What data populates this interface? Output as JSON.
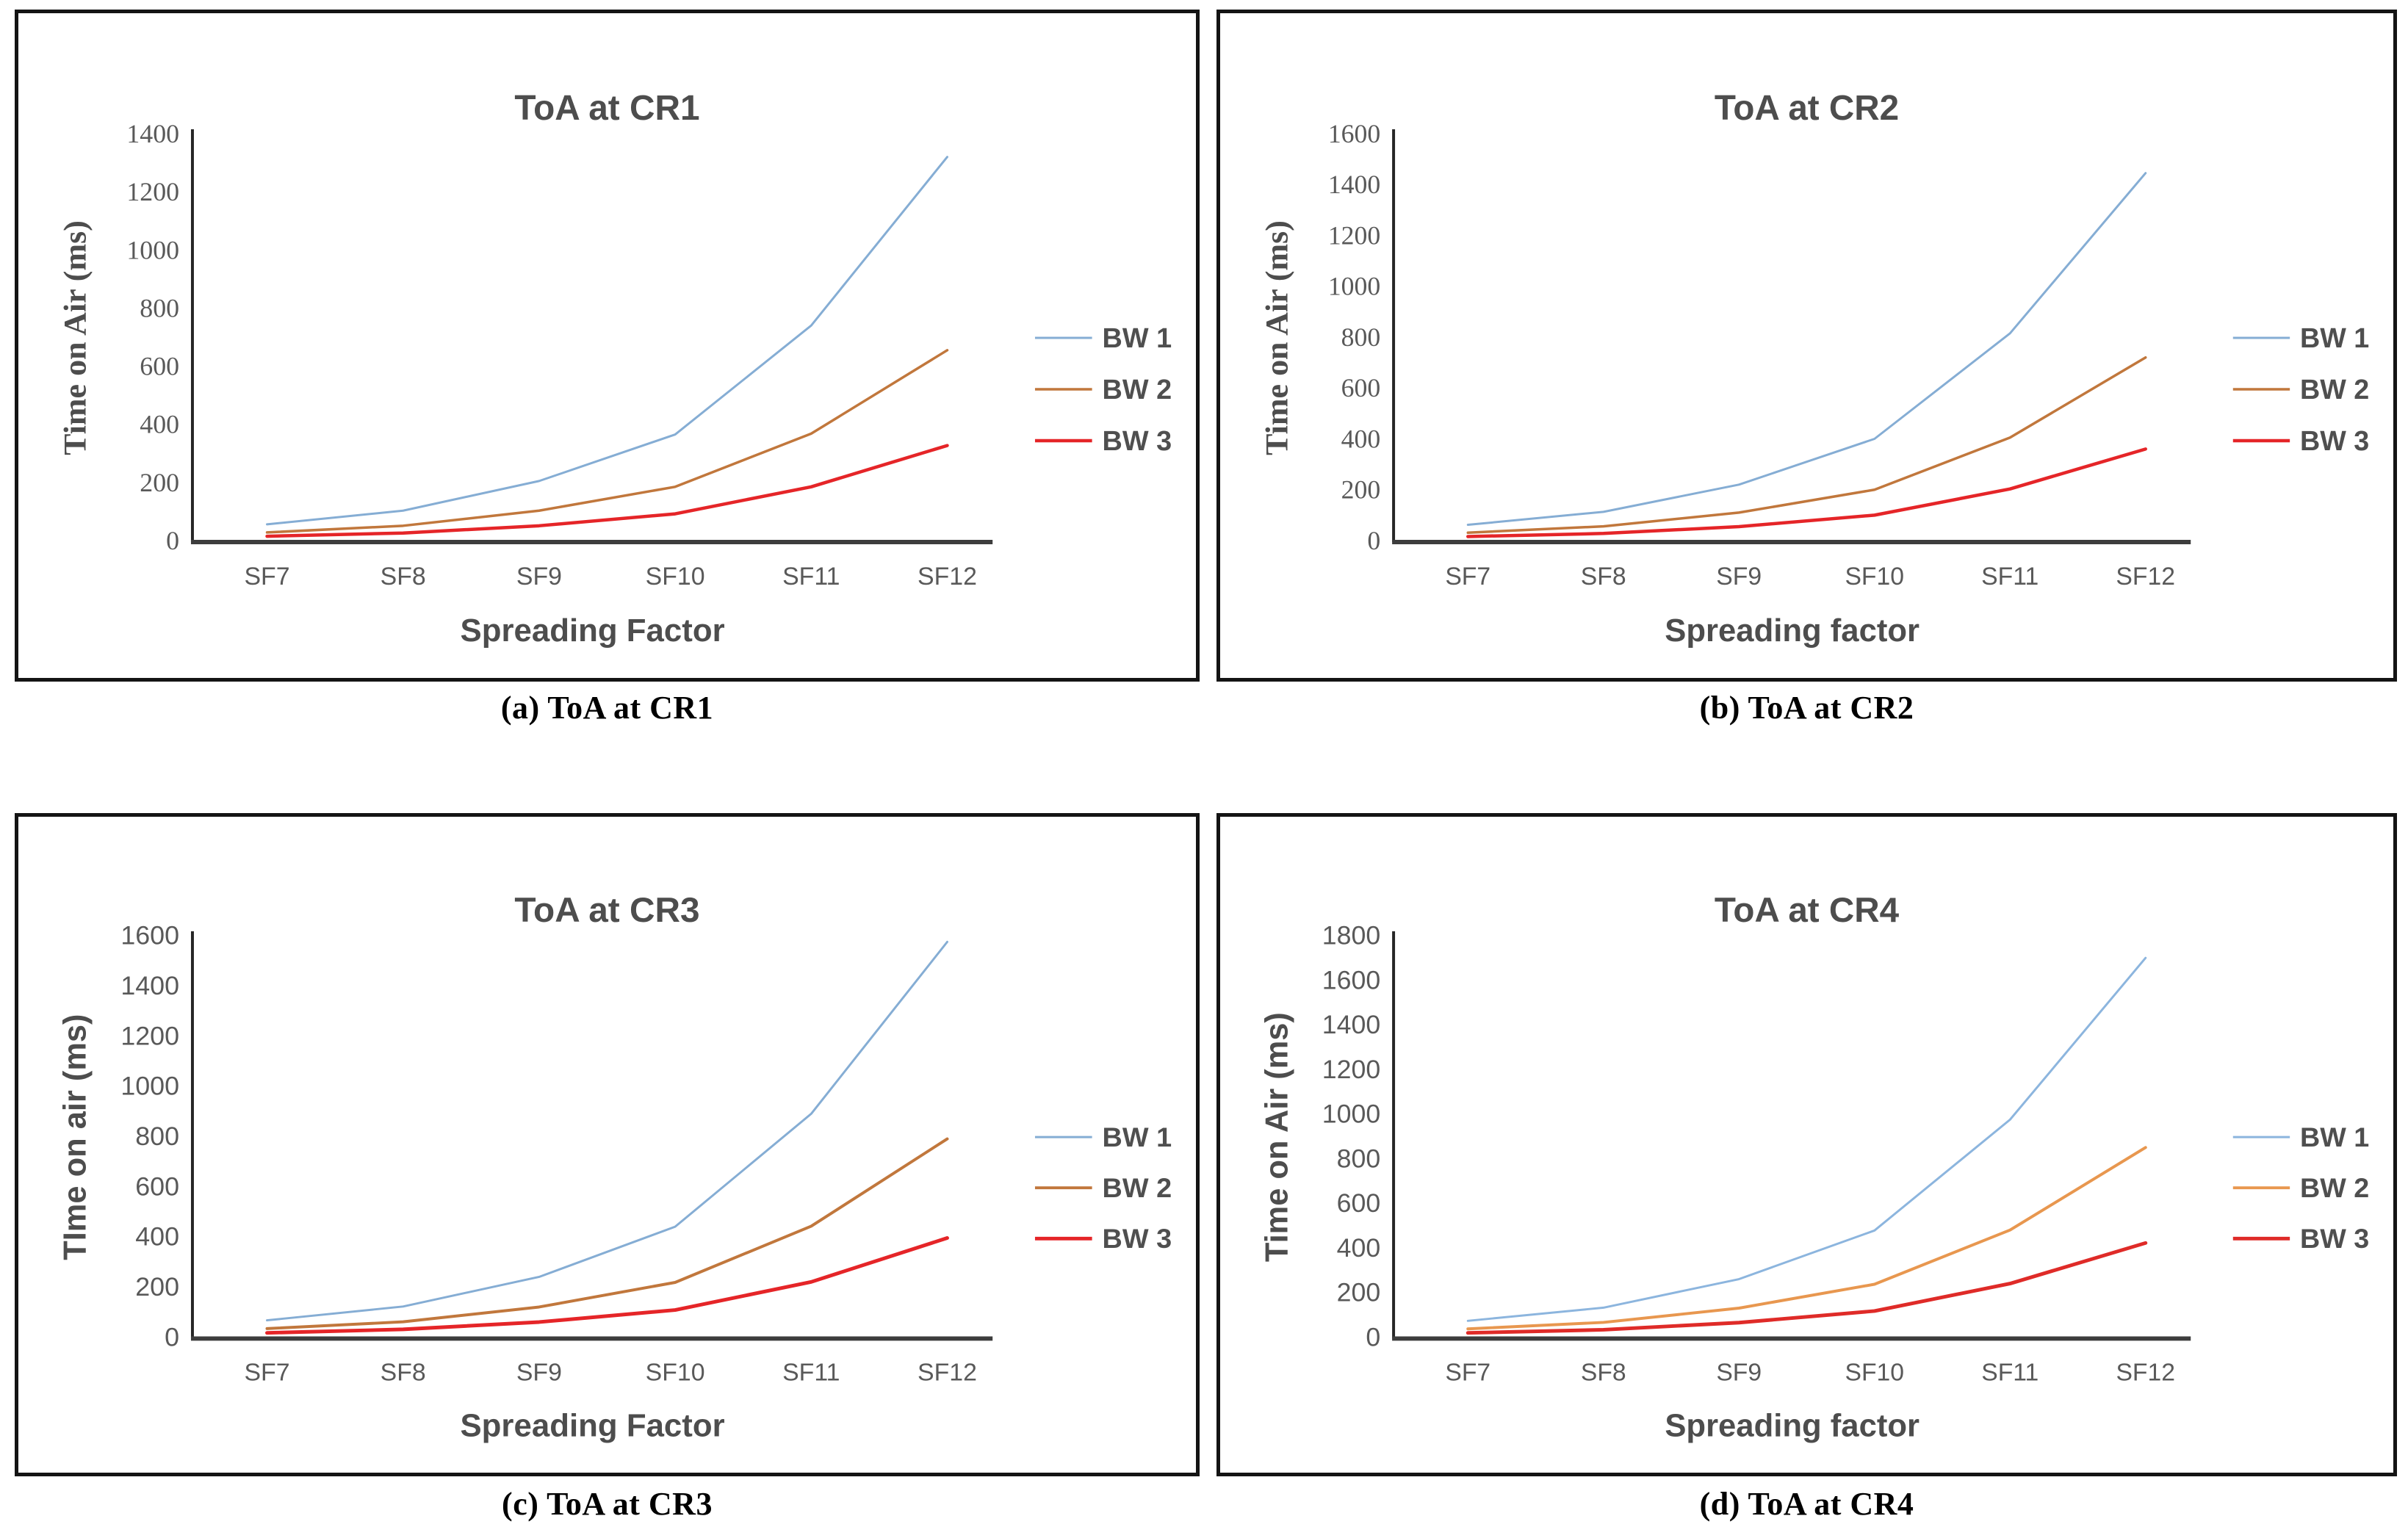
{
  "page": {
    "background": "#ffffff",
    "axis_color": "#3d3d3d",
    "tick_text_color": "#595959",
    "title_text_color": "#4d4d4d",
    "caption_text_color": "#000000"
  },
  "chart_data": [
    {
      "id": "a",
      "type": "line",
      "title": "ToA at CR1",
      "caption": "(a) ToA at CR1",
      "xlabel": "Spreading Factor",
      "ylabel": "Time on Air (ms)",
      "label_style": "serif",
      "grid": false,
      "legend_position": "right",
      "categories": [
        "SF7",
        "SF8",
        "SF9",
        "SF10",
        "SF11",
        "SF12"
      ],
      "ylim": [
        0,
        1400
      ],
      "yticks": [
        0,
        200,
        400,
        600,
        800,
        1000,
        1200,
        1400
      ],
      "series": [
        {
          "name": "BW 1",
          "color": "#85ADD4",
          "stroke_width": 3,
          "values": [
            56,
            103,
            205,
            365,
            740,
            1320
          ]
        },
        {
          "name": "BW 2",
          "color": "#C1773C",
          "stroke_width": 3.5,
          "values": [
            28,
            51,
            103,
            185,
            368,
            655
          ]
        },
        {
          "name": "BW 3",
          "color": "#E52528",
          "stroke_width": 4.5,
          "values": [
            15,
            26,
            51,
            92,
            185,
            327
          ]
        }
      ]
    },
    {
      "id": "b",
      "type": "line",
      "title": "ToA at CR2",
      "caption": "(b) ToA at CR2",
      "xlabel": "Spreading factor",
      "ylabel": "Time on Air (ms)",
      "label_style": "serif",
      "grid": false,
      "legend_position": "right",
      "categories": [
        "SF7",
        "SF8",
        "SF9",
        "SF10",
        "SF11",
        "SF12"
      ],
      "ylim": [
        0,
        1600
      ],
      "yticks": [
        0,
        200,
        400,
        600,
        800,
        1000,
        1200,
        1400,
        1600
      ],
      "series": [
        {
          "name": "BW 1",
          "color": "#85ADD4",
          "stroke_width": 3,
          "values": [
            62,
            113,
            220,
            400,
            815,
            1445
          ]
        },
        {
          "name": "BW 2",
          "color": "#C1773C",
          "stroke_width": 3.5,
          "values": [
            31,
            56,
            110,
            200,
            405,
            720
          ]
        },
        {
          "name": "BW 3",
          "color": "#E52528",
          "stroke_width": 4.5,
          "values": [
            16,
            28,
            55,
            100,
            203,
            360
          ]
        }
      ]
    },
    {
      "id": "c",
      "type": "line",
      "title": "ToA at CR3",
      "caption": "(c) ToA at CR3",
      "xlabel": "Spreading Factor",
      "ylabel": "TIme on air (ms)",
      "label_style": "sans",
      "grid": false,
      "legend_position": "right",
      "categories": [
        "SF7",
        "SF8",
        "SF9",
        "SF10",
        "SF11",
        "SF12"
      ],
      "ylim": [
        0,
        1600
      ],
      "yticks": [
        0,
        200,
        400,
        600,
        800,
        1000,
        1200,
        1400,
        1600
      ],
      "series": [
        {
          "name": "BW 1",
          "color": "#85ADD4",
          "stroke_width": 3,
          "values": [
            67,
            122,
            240,
            440,
            890,
            1575
          ]
        },
        {
          "name": "BW 2",
          "color": "#C1773C",
          "stroke_width": 4,
          "values": [
            34,
            61,
            120,
            218,
            442,
            790
          ]
        },
        {
          "name": "BW 3",
          "color": "#E52528",
          "stroke_width": 5,
          "values": [
            17,
            31,
            60,
            108,
            220,
            395
          ]
        }
      ]
    },
    {
      "id": "d",
      "type": "line",
      "title": "ToA at CR4",
      "caption": "(d) ToA at CR4",
      "xlabel": "Spreading factor",
      "ylabel": "Time on Air (ms)",
      "label_style": "sans",
      "grid": false,
      "legend_position": "right",
      "categories": [
        "SF7",
        "SF8",
        "SF9",
        "SF10",
        "SF11",
        "SF12"
      ],
      "ylim": [
        0,
        1800
      ],
      "yticks": [
        0,
        200,
        400,
        600,
        800,
        1000,
        1200,
        1400,
        1600,
        1800
      ],
      "series": [
        {
          "name": "BW 1",
          "color": "#8CB5DE",
          "stroke_width": 3,
          "values": [
            73,
            132,
            260,
            478,
            975,
            1700
          ]
        },
        {
          "name": "BW 2",
          "color": "#E8974F",
          "stroke_width": 4,
          "values": [
            37,
            66,
            130,
            237,
            480,
            850
          ]
        },
        {
          "name": "BW 3",
          "color": "#DF2B28",
          "stroke_width": 5,
          "values": [
            19,
            33,
            65,
            117,
            240,
            422
          ]
        }
      ]
    }
  ]
}
